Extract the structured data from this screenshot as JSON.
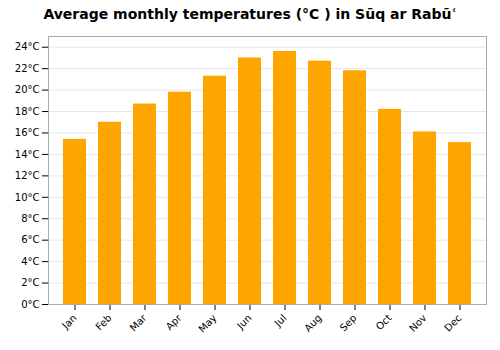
{
  "chart_data": {
    "type": "bar",
    "title": "Average monthly temperatures (°C ) in Sūq ar Rabūʿ",
    "categories": [
      "Jan",
      "Feb",
      "Mar",
      "Apr",
      "May",
      "Jun",
      "Jul",
      "Aug",
      "Sep",
      "Oct",
      "Nov",
      "Dec"
    ],
    "values": [
      15.4,
      17.0,
      18.7,
      19.8,
      21.3,
      23.0,
      23.6,
      22.7,
      21.8,
      18.2,
      16.1,
      15.1
    ],
    "color": "#FFA500",
    "ylim": [
      0,
      25
    ],
    "yticks": [
      {
        "value": 0,
        "label": "0°C"
      },
      {
        "value": 2,
        "label": "2°C"
      },
      {
        "value": 4,
        "label": "4°C"
      },
      {
        "value": 6,
        "label": "6°C"
      },
      {
        "value": 8,
        "label": "8°C"
      },
      {
        "value": 10,
        "label": "10°C"
      },
      {
        "value": 12,
        "label": "12°C"
      },
      {
        "value": 14,
        "label": "14°C"
      },
      {
        "value": 16,
        "label": "16°C"
      },
      {
        "value": 18,
        "label": "18°C"
      },
      {
        "value": 20,
        "label": "20°C"
      },
      {
        "value": 22,
        "label": "22°C"
      },
      {
        "value": 24,
        "label": "24°C"
      }
    ],
    "grid": true
  }
}
